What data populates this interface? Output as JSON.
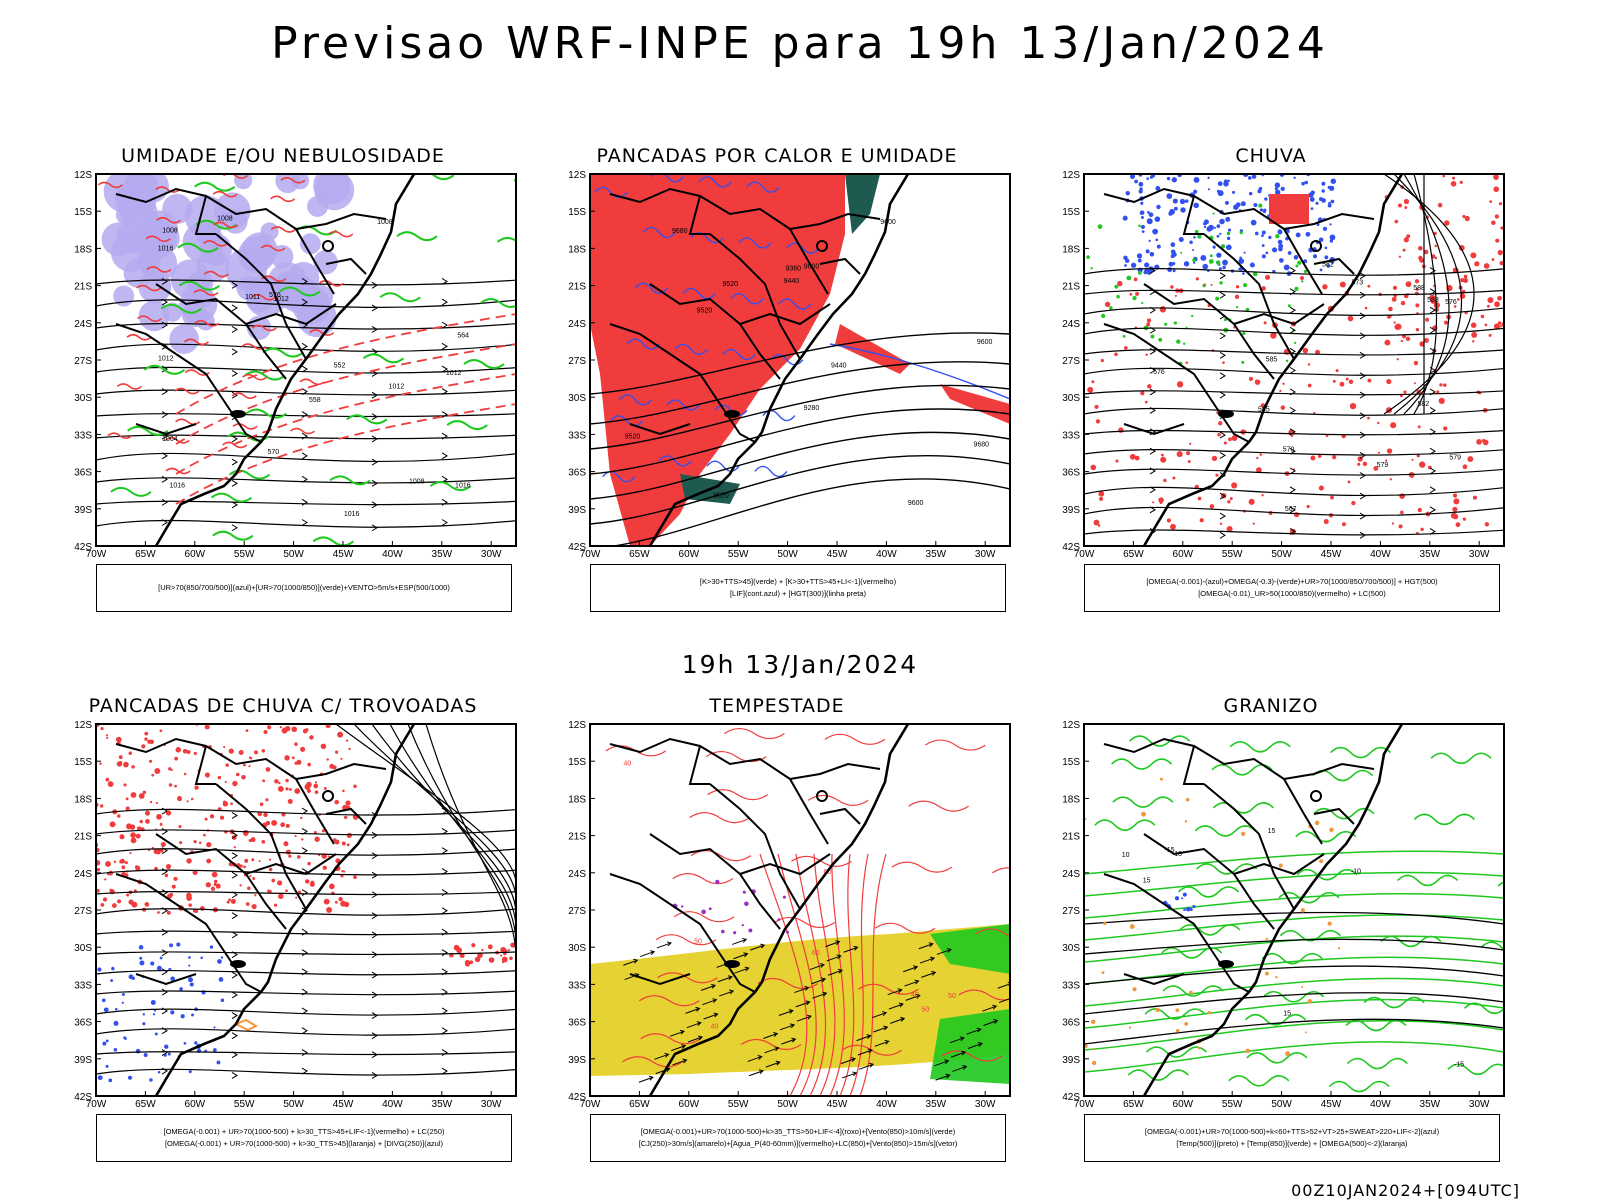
{
  "header": {
    "main_title": "Previsao WRF-INPE  para 19h 13/Jan/2024",
    "mid_title": "19h 13/Jan/2024",
    "footer": "00Z10JAN2024+[094UTC]"
  },
  "axes": {
    "lat_labels": [
      "12S",
      "15S",
      "18S",
      "21S",
      "24S",
      "27S",
      "30S",
      "33S",
      "36S",
      "39S",
      "42S"
    ],
    "lon_labels": [
      "70W",
      "65W",
      "60W",
      "55W",
      "50W",
      "45W",
      "40W",
      "35W",
      "30W"
    ]
  },
  "colors": {
    "red": "#f03c3c",
    "green": "#1ec81e",
    "blue": "#3250f0",
    "lavender": "#b4aaf0",
    "yellow": "#e6d232",
    "darkteal": "#1e5a50",
    "orange": "#f0963c"
  },
  "panels": [
    {
      "title": "UMIDADE E/OU NEBULOSIDADE",
      "legend": [
        "[UR>70(850/700/500)](azul)+[UR>70(1000/850)](verde)+VENTO>5m/s+ESP(500/1000)"
      ],
      "contour_labels": [
        "1012",
        "1012",
        "1016",
        "1008",
        "1012",
        "1008",
        "1004",
        "1008",
        "1011",
        "1016",
        "1016",
        "1012",
        "1008",
        "1016",
        "570",
        "564",
        "558",
        "552",
        "576"
      ]
    },
    {
      "title": "PANCADAS POR CALOR E UMIDADE",
      "legend": [
        "[K>30+TTS>45](verde) + [K>30+TTS>45+LI<-1](vermelho)",
        "[LIF](cont.azul) + [HGT(300)](linha preta)"
      ],
      "contour_labels": [
        "9600",
        "9680",
        "9680",
        "9600",
        "9520",
        "9600",
        "9520",
        "9440",
        "9440",
        "9520",
        "9360",
        "9280",
        "9600",
        "9520"
      ]
    },
    {
      "title": "CHUVA",
      "legend": [
        "[OMEGA(-0.001)-(azul)+OMEGA(-0.3)-(verde)+UR>70(1000/850/700/500)] + HGT(500)",
        "[OMEGA(-0.01)_UR>50(1000/850)(vermelho) + LC(500)"
      ],
      "contour_labels": [
        "588",
        "585",
        "582",
        "579",
        "576",
        "573",
        "570",
        "567",
        "582",
        "585",
        "588",
        "579",
        "576"
      ]
    },
    {
      "title": "PANCADAS DE CHUVA C/ TROVOADAS",
      "legend": [
        "[OMEGA(-0.001) + UR>70(1000-500) + k>30_TTS>45+LIF<-1](vermelho) + LC(250)",
        "[OMEGA(-0.001) + UR>70(1000-500) + k>30_TTS>45](laranja) + [DIVG(250)](azul)"
      ],
      "contour_labels": []
    },
    {
      "title": "TEMPESTADE",
      "legend": [
        "[OMEGA(-0.001)+UR>70(1000-500)+k>35_TTS>50+LIF<-4](roxo)+[Vento(850)>10m/s](verde)",
        "[CJ(250)>30m/s](amarelo)+[Agua_P(40-60mm)](vermelho)+LC(850)+[Vento(850)>15m/s](vetor)"
      ],
      "contour_labels": [
        "40",
        "50",
        "60",
        "50",
        "40",
        "60",
        "50",
        "40"
      ]
    },
    {
      "title": "GRANIZO",
      "legend": [
        "[OMEGA(-0.001)+UR>70(1000-500)+k<60+TTS>52+VT>25+SWEAT>220+LIF<-2](azul)",
        "[Temp(500)](preto) + [Temp(850)](verde) + [OMEGA(500)<-2](laranja)"
      ],
      "contour_labels": [
        "15",
        "10",
        "15",
        "-15",
        "-10",
        "15",
        "10",
        "-15"
      ]
    }
  ]
}
